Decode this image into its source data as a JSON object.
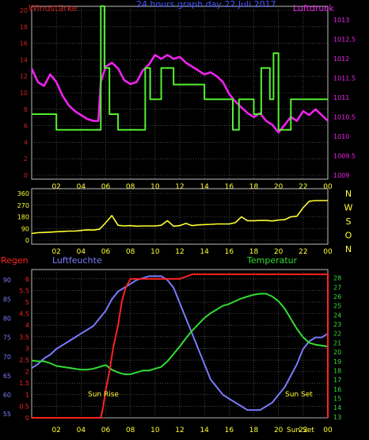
{
  "colors": {
    "background": "#000000",
    "grid": "#7a7a7a",
    "wind": "#55ee33",
    "pressure": "#ee22ee",
    "direction": "#ffff33",
    "humidity": "#7a7aff",
    "temperature": "#33dd33",
    "rain": "#ff2222",
    "time_axis": "#ffff33"
  },
  "chart_data": [
    {
      "type": "line",
      "title": "24 hours graph day  22 Juli 2017",
      "left_label": "Windstärke",
      "right_label": "Luftdruck",
      "x_tick_labels": [
        "02",
        "04",
        "06",
        "08",
        "10",
        "12",
        "14",
        "16",
        "18",
        "20",
        "22",
        "00"
      ],
      "y_left_ticks": [
        "0",
        "2",
        "4",
        "6",
        "8",
        "10",
        "12",
        "14",
        "16",
        "18",
        "20"
      ],
      "y_left_lim": [
        0,
        20
      ],
      "y_right_ticks": [
        "1009",
        "1009.5",
        "1010",
        "1010.5",
        "1011",
        "1011.5",
        "1012",
        "1012.5",
        "1013"
      ],
      "y_right_lim": [
        1009,
        1013.25
      ],
      "grid": true,
      "series": [
        {
          "name": "Windstärke",
          "axis": "left",
          "step": true,
          "x": [
            0,
            2,
            2,
            5.6,
            5.6,
            5.9,
            5.9,
            6.3,
            6.3,
            7,
            7,
            9.2,
            9.2,
            9.6,
            9.6,
            10.5,
            10.5,
            11.5,
            11.5,
            13,
            13,
            14,
            14,
            15.6,
            15.6,
            16.3,
            16.3,
            16.8,
            16.8,
            18,
            18,
            18.6,
            18.6,
            19.3,
            19.3,
            19.6,
            19.6,
            20,
            20,
            21,
            21,
            21.6,
            21.6,
            22.6,
            22.6,
            24
          ],
          "y": [
            7.4,
            7.4,
            5.5,
            5.5,
            20.5,
            20.5,
            13,
            13,
            7.4,
            7.4,
            5.5,
            5.5,
            13,
            13,
            9.2,
            9.2,
            13,
            13,
            11,
            11,
            11,
            11,
            9.2,
            9.2,
            9.2,
            9.2,
            5.5,
            5.5,
            9.2,
            9.2,
            7.4,
            7.4,
            13,
            13,
            9.2,
            9.2,
            14.8,
            14.8,
            5.5,
            5.5,
            9.2,
            9.2,
            9.2,
            9.2,
            9.2,
            9.2
          ]
        },
        {
          "name": "Luftdruck",
          "axis": "right",
          "x": [
            0,
            0.5,
            1,
            1.5,
            2,
            2.5,
            3,
            3.5,
            4,
            4.5,
            5,
            5.4,
            5.6,
            6,
            6.5,
            7,
            7.5,
            8,
            8.5,
            9,
            9.5,
            10,
            10.5,
            11,
            11.5,
            12,
            12.5,
            13,
            13.5,
            14,
            14.5,
            15,
            15.5,
            16,
            16.5,
            17,
            17.5,
            18,
            18.5,
            19,
            19.5,
            20,
            20.5,
            21,
            21.5,
            22,
            22.5,
            23,
            23.5,
            24
          ],
          "y": [
            1011.75,
            1011.4,
            1011.3,
            1011.6,
            1011.4,
            1011.05,
            1010.8,
            1010.65,
            1010.55,
            1010.45,
            1010.4,
            1010.4,
            1011.4,
            1011.8,
            1011.9,
            1011.75,
            1011.45,
            1011.35,
            1011.4,
            1011.7,
            1011.85,
            1012.1,
            1012.0,
            1012.1,
            1012.0,
            1012.05,
            1011.9,
            1011.8,
            1011.7,
            1011.6,
            1011.65,
            1011.55,
            1011.4,
            1011.1,
            1010.9,
            1010.75,
            1010.6,
            1010.5,
            1010.6,
            1010.4,
            1010.3,
            1010.1,
            1010.3,
            1010.5,
            1010.4,
            1010.65,
            1010.55,
            1010.7,
            1010.55,
            1010.4
          ]
        }
      ]
    },
    {
      "type": "line",
      "title": "",
      "direction_labels": [
        "N",
        "W",
        "S",
        "O",
        "N"
      ],
      "x_tick_labels": [
        "02",
        "04",
        "06",
        "08",
        "10",
        "12",
        "14",
        "16",
        "18",
        "20",
        "22",
        "00"
      ],
      "y_ticks": [
        "0",
        "90",
        "180",
        "270",
        "360"
      ],
      "ylim": [
        0,
        360
      ],
      "grid": true,
      "series": [
        {
          "name": "",
          "x": [
            0,
            0.5,
            1,
            1.5,
            2,
            2.5,
            3,
            3.5,
            4,
            4.5,
            5,
            5.5,
            6,
            6.5,
            7,
            7.5,
            8,
            8.5,
            9,
            9.5,
            10,
            10.5,
            11,
            11.5,
            12,
            12.5,
            13,
            13.5,
            14,
            14.5,
            15,
            15.5,
            16,
            16.5,
            17,
            17.5,
            18,
            18.5,
            19,
            19.5,
            20,
            20.5,
            21,
            21.5,
            22,
            22.5,
            23,
            23.5,
            24
          ],
          "y": [
            52,
            58,
            60,
            62,
            65,
            68,
            70,
            70,
            75,
            80,
            78,
            85,
            135,
            190,
            115,
            110,
            112,
            108,
            110,
            110,
            110,
            115,
            150,
            108,
            112,
            130,
            112,
            118,
            120,
            122,
            125,
            125,
            125,
            135,
            180,
            150,
            150,
            152,
            152,
            148,
            155,
            158,
            180,
            185,
            250,
            300,
            305,
            305,
            305
          ]
        }
      ]
    },
    {
      "type": "line",
      "title": "",
      "labels": {
        "rain": "Regen",
        "humidity": "Luftfeuchte",
        "temperature": "Temperatur"
      },
      "annotations": [
        "Sun Rise",
        "Sun Set",
        "Sun Set"
      ],
      "x_tick_labels": [
        "02",
        "04",
        "06",
        "08",
        "10",
        "12",
        "14",
        "16",
        "18",
        "20",
        "22",
        "00"
      ],
      "y_rain_ticks": [
        "0",
        "0.5",
        "1",
        "1.5",
        "2",
        "2.5",
        "3",
        "3.5",
        "4",
        "4.5",
        "5",
        "5.5",
        "6"
      ],
      "y_rain_lim": [
        0,
        6.2
      ],
      "y_humidity_ticks": [
        "55",
        "60",
        "65",
        "70",
        "75",
        "80",
        "85",
        "90"
      ],
      "y_humidity_lim": [
        54,
        91.5
      ],
      "y_temperature_ticks": [
        "13",
        "14",
        "15",
        "16",
        "17",
        "18",
        "19",
        "20",
        "21",
        "22",
        "23",
        "24",
        "25",
        "26",
        "27",
        "28"
      ],
      "y_temperature_lim": [
        12.9,
        28.4
      ],
      "grid": true,
      "series": [
        {
          "name": "Regen",
          "axis": "rain",
          "step": true,
          "x": [
            0,
            5.6,
            5.8,
            6,
            6.3,
            6.6,
            7,
            7.3,
            7.6,
            8,
            8.5,
            10,
            10.5,
            11,
            11.5,
            12,
            13,
            24,
            24
          ],
          "y": [
            0,
            0,
            0.5,
            1.2,
            2,
            3,
            4,
            5,
            5.6,
            6,
            6,
            6,
            6,
            6,
            6,
            6,
            6.2,
            6.2,
            0
          ]
        },
        {
          "name": "Luftfeuchte",
          "axis": "humidity",
          "x": [
            0,
            0.5,
            1,
            1.5,
            2,
            2.5,
            3,
            3.5,
            4,
            4.5,
            5,
            5.5,
            6,
            6.5,
            7,
            7.5,
            8,
            8.5,
            9,
            9.5,
            10,
            10.5,
            11,
            11.5,
            12,
            12.5,
            13,
            13.5,
            14,
            14.5,
            15,
            15.5,
            16,
            16.5,
            17,
            17.5,
            18,
            18.5,
            19,
            19.5,
            20,
            20.5,
            21,
            21.5,
            22,
            22.5,
            23,
            23.5,
            24
          ],
          "y": [
            67,
            68,
            69.5,
            70.5,
            72,
            73,
            74,
            75,
            76,
            77,
            78,
            80,
            82,
            85,
            87,
            88,
            89,
            90,
            90.5,
            91,
            91,
            91,
            90,
            88,
            84,
            80,
            76,
            72,
            68,
            64,
            62,
            60,
            59,
            58,
            57,
            56,
            56,
            56,
            57,
            58,
            60,
            62,
            65,
            68,
            72,
            74,
            75,
            75,
            76
          ]
        },
        {
          "name": "Temperatur",
          "axis": "temperature",
          "x": [
            0,
            0.5,
            1,
            1.5,
            2,
            2.5,
            3,
            3.5,
            4,
            4.5,
            5,
            5.5,
            6,
            6.5,
            7,
            7.5,
            8,
            8.5,
            9,
            9.5,
            10,
            10.5,
            11,
            11.5,
            12,
            12.5,
            13,
            13.5,
            14,
            14.5,
            15,
            15.5,
            16,
            16.5,
            17,
            17.5,
            18,
            18.5,
            19,
            19.5,
            20,
            20.5,
            21,
            21.5,
            22,
            22.5,
            23,
            23.5,
            24
          ],
          "y": [
            19.1,
            19.0,
            19.0,
            18.8,
            18.5,
            18.4,
            18.3,
            18.2,
            18.1,
            18.1,
            18.2,
            18.4,
            18.6,
            18.1,
            17.8,
            17.6,
            17.6,
            17.8,
            18.0,
            18.0,
            18.2,
            18.4,
            19.0,
            19.8,
            20.6,
            21.5,
            22.3,
            23.0,
            23.7,
            24.2,
            24.6,
            25.0,
            25.2,
            25.5,
            25.8,
            26.0,
            26.2,
            26.3,
            26.3,
            26.0,
            25.5,
            24.7,
            23.6,
            22.5,
            21.6,
            21.0,
            20.8,
            20.7,
            20.6
          ]
        }
      ]
    }
  ]
}
